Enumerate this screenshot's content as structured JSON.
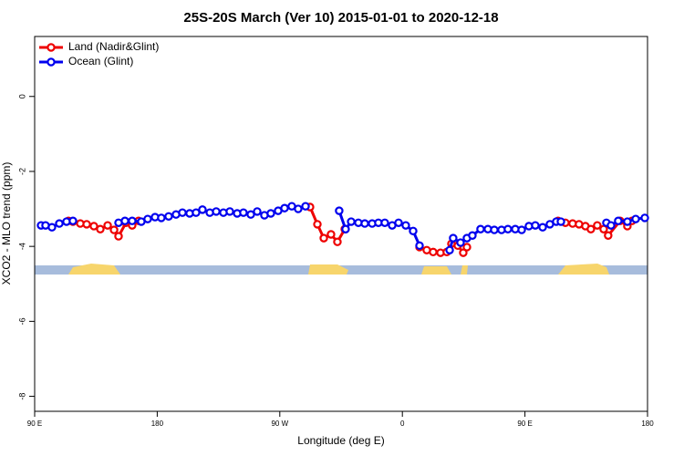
{
  "chart_data": {
    "type": "line",
    "title": "25S-20S March (Ver 10)   2015-01-01 to 2020-12-18",
    "x_label": "Longitude (deg E)",
    "y_label": "XCO2 - MLO trend (ppm)",
    "xlim": [
      90,
      540
    ],
    "ylim": [
      -8.4,
      1.6
    ],
    "xticks": [
      {
        "value": 90,
        "label": "90 E"
      },
      180,
      {
        "value": 270,
        "label": "90 W"
      },
      {
        "value": 360,
        "label": "0"
      },
      {
        "value": 450,
        "label": "90 E"
      },
      {
        "value": 540,
        "label": "180"
      }
    ],
    "yticks": [
      -8,
      -6,
      -4,
      -2,
      0
    ],
    "legend": "top-left",
    "series": [
      {
        "name": "Land (Nadir&Glint)",
        "color": "#ee0000",
        "x": [
          114.8,
          118.1,
          123.5,
          128.2,
          133.5,
          138.2,
          143.6,
          148.3,
          151.6,
          157.0,
          161.6,
          166.3,
          null,
          292.2,
          297.6,
          302.3,
          307.6,
          312.3,
          317.7,
          null,
          372.6,
          377.9,
          382.6,
          388.0,
          392.6,
          396.0,
          400.7,
          404.7,
          407.4,
          null,
          474.3,
          479.7,
          485.0,
          489.7,
          494.4,
          498.4,
          503.1,
          507.8,
          511.1,
          519.9,
          525.2,
          528.6
        ],
        "y": [
          -3.32,
          -3.34,
          -3.39,
          -3.41,
          -3.46,
          -3.54,
          -3.44,
          -3.56,
          -3.73,
          -3.37,
          -3.44,
          -3.32,
          null,
          -2.95,
          -3.41,
          -3.78,
          -3.68,
          -3.88,
          -3.54,
          null,
          -4.02,
          -4.1,
          -4.15,
          -4.17,
          -4.15,
          -3.93,
          -3.98,
          -4.17,
          -4.02,
          null,
          -3.32,
          -3.37,
          -3.39,
          -3.41,
          -3.46,
          -3.54,
          -3.44,
          -3.54,
          -3.71,
          -3.32,
          -3.46,
          -3.32
        ]
      },
      {
        "name": "Ocean (Glint)",
        "color": "#0000ee",
        "x": [
          94.7,
          98.0,
          102.7,
          108.1,
          113.4,
          118.1,
          null,
          151.6,
          156.3,
          161.6,
          168.3,
          173.0,
          178.4,
          183.0,
          188.4,
          193.8,
          198.5,
          203.8,
          208.5,
          213.2,
          218.6,
          223.3,
          228.6,
          233.3,
          238.7,
          243.3,
          248.7,
          253.4,
          258.7,
          263.4,
          268.8,
          273.5,
          278.8,
          283.5,
          288.9,
          null,
          313.6,
          318.3,
          322.4,
          327.7,
          332.4,
          337.8,
          342.4,
          347.1,
          352.5,
          357.2,
          362.5,
          367.9,
          372.6,
          null,
          394.7,
          397.3,
          402.7,
          407.4,
          411.4,
          417.4,
          422.8,
          427.5,
          432.8,
          437.5,
          442.9,
          447.6,
          452.9,
          457.6,
          463.0,
          468.3,
          473.0,
          476.4,
          null,
          509.8,
          513.2,
          518.5,
          525.2,
          531.3,
          538.0
        ],
        "y": [
          -3.44,
          -3.44,
          -3.49,
          -3.39,
          -3.34,
          -3.32,
          null,
          -3.37,
          -3.32,
          -3.32,
          -3.34,
          -3.27,
          -3.22,
          -3.24,
          -3.2,
          -3.15,
          -3.1,
          -3.12,
          -3.1,
          -3.02,
          -3.1,
          -3.07,
          -3.1,
          -3.07,
          -3.12,
          -3.1,
          -3.15,
          -3.07,
          -3.17,
          -3.12,
          -3.05,
          -2.98,
          -2.93,
          -3.0,
          -2.93,
          null,
          -3.05,
          -3.54,
          -3.34,
          -3.37,
          -3.39,
          -3.39,
          -3.37,
          -3.37,
          -3.44,
          -3.37,
          -3.44,
          -3.59,
          -3.98,
          null,
          -4.1,
          -3.78,
          -3.9,
          -3.78,
          -3.71,
          -3.54,
          -3.54,
          -3.56,
          -3.56,
          -3.54,
          -3.54,
          -3.56,
          -3.46,
          -3.44,
          -3.49,
          -3.41,
          -3.34,
          -3.34,
          null,
          -3.37,
          -3.44,
          -3.32,
          -3.34,
          -3.27,
          -3.24
        ]
      }
    ]
  }
}
